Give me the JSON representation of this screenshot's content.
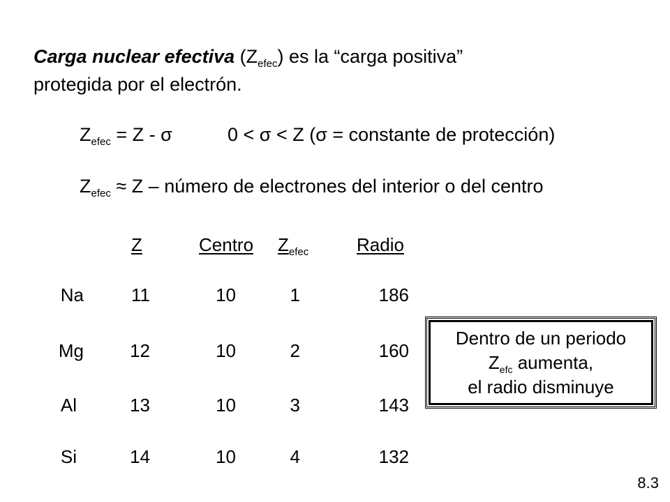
{
  "intro": {
    "term": "Carga nuclear efectiva",
    "open_paren": "(Z",
    "term_sub": "efec",
    "rest_line1": ") es la “carga positiva”",
    "line2": "protegida por el electrón."
  },
  "formula1": {
    "z": "Z",
    "sub": "efec",
    "eq": " = Z - σ",
    "constraint": "0 < σ < Z (σ = constante de protección)"
  },
  "formula2": {
    "z": "Z",
    "sub": "efec",
    "text": " ≈ Z – número de electrones del interior o del centro"
  },
  "table": {
    "headers": {
      "z": "Z",
      "centro": "Centro",
      "zefec_main": "Z",
      "zefec_sub": "efec",
      "radio": "Radio"
    },
    "rows": [
      {
        "element": "Na",
        "z": "11",
        "centro": "10",
        "zefec": "1",
        "radio": "186"
      },
      {
        "element": "Mg",
        "z": "12",
        "centro": "10",
        "zefec": "2",
        "radio": "160"
      },
      {
        "element": "Al",
        "z": "13",
        "centro": "10",
        "zefec": "3",
        "radio": "143"
      },
      {
        "element": "Si",
        "z": "14",
        "centro": "10",
        "zefec": "4",
        "radio": "132"
      }
    ]
  },
  "callout": {
    "line1": "Dentro de un periodo",
    "line2_main": "Z",
    "line2_sub": "efc",
    "line2_rest": " aumenta,",
    "line3": "el radio disminuye"
  },
  "slide_number": "8.3"
}
